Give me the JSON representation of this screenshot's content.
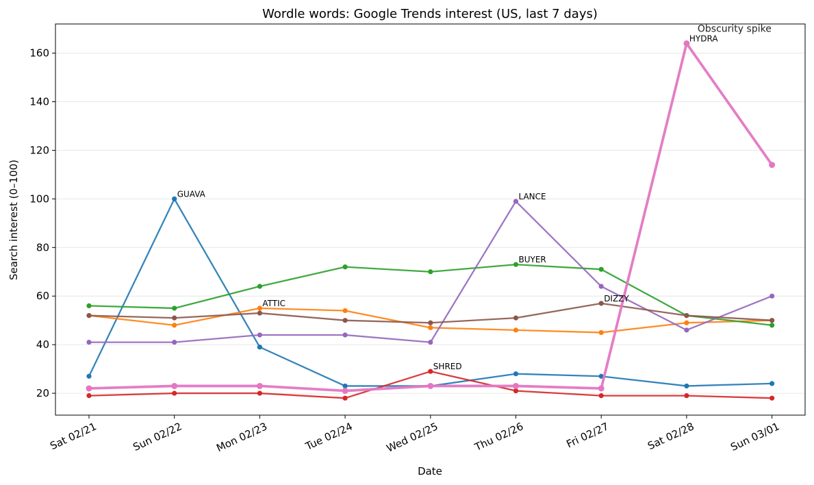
{
  "chart_data": {
    "type": "line",
    "title": "Wordle words: Google Trends interest (US, last 7 days)",
    "xlabel": "Date",
    "ylabel": "Search interest (0–100)",
    "categories": [
      "Sat 02/21",
      "Sun 02/22",
      "Mon 02/23",
      "Tue 02/24",
      "Wed 02/25",
      "Thu 02/26",
      "Fri 02/27",
      "Sat 02/28",
      "Sun 03/01"
    ],
    "ylim": [
      11,
      172
    ],
    "yticks": [
      20,
      40,
      60,
      80,
      100,
      120,
      140,
      160
    ],
    "grid": "horizontal",
    "series": [
      {
        "name": "",
        "color": "#1f77b4",
        "values": [
          27,
          100,
          39,
          23,
          23,
          28,
          27,
          23,
          24
        ]
      },
      {
        "name": "",
        "color": "#ff7f0e",
        "values": [
          52,
          48,
          55,
          54,
          47,
          46,
          45,
          49,
          50
        ]
      },
      {
        "name": "",
        "color": "#2ca02c",
        "values": [
          56,
          55,
          64,
          72,
          70,
          73,
          71,
          52,
          48
        ]
      },
      {
        "name": "",
        "color": "#d62728",
        "values": [
          19,
          20,
          20,
          18,
          29,
          21,
          19,
          19,
          18
        ]
      },
      {
        "name": "",
        "color": "#9467bd",
        "values": [
          41,
          41,
          44,
          44,
          41,
          99,
          64,
          46,
          60
        ]
      },
      {
        "name": "",
        "color": "#8c564b",
        "values": [
          52,
          51,
          53,
          50,
          49,
          51,
          57,
          52,
          50
        ]
      },
      {
        "name": "",
        "color": "#e377c2",
        "values": [
          22,
          23,
          23,
          21,
          23,
          23,
          22,
          164,
          114
        ],
        "emphasis": true
      }
    ],
    "annotations": [
      {
        "text": "GUAVA",
        "x": "Sun 02/22",
        "y": 100
      },
      {
        "text": "ATTIC",
        "x": "Mon 02/23",
        "y": 55
      },
      {
        "text": "SHRED",
        "x": "Wed 02/25",
        "y": 29
      },
      {
        "text": "LANCE",
        "x": "Thu 02/26",
        "y": 99
      },
      {
        "text": "BUYER",
        "x": "Thu 02/26",
        "y": 73
      },
      {
        "text": "DIZZY",
        "x": "Fri 02/27",
        "y": 57
      },
      {
        "text": "HYDRA",
        "x": "Sat 02/28",
        "y": 164
      }
    ],
    "callout": {
      "text": "Obscurity spike",
      "x": "Sat 02/28",
      "y": 164
    }
  }
}
